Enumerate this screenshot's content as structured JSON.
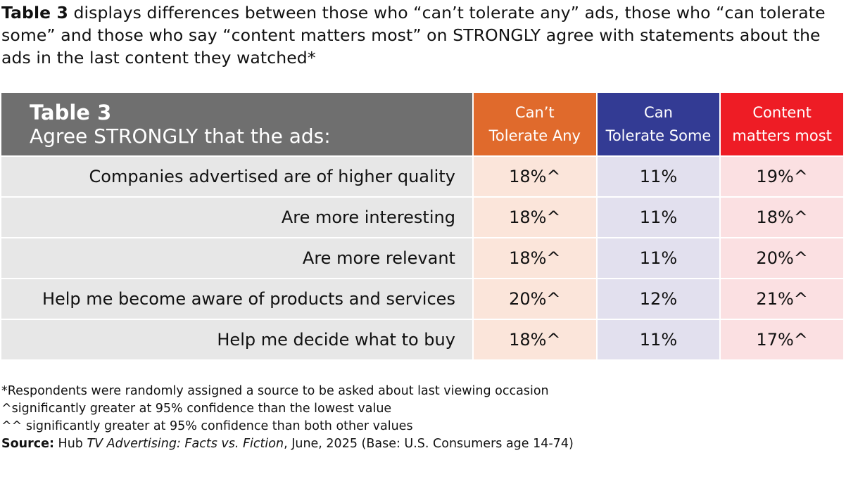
{
  "intro": {
    "bold_lead": "Table 3",
    "text": " displays differences between those who “can’t tolerate any” ads, those who “can tolerate some” and those who say “content matters most” on STRONGLY agree with state­ments about the ads in the last content they watched*"
  },
  "table": {
    "title": "Table 3",
    "subtitle": "Agree STRONGLY that the ads:",
    "columns": [
      {
        "line1": "Can’t",
        "line2": "Tolerate Any",
        "color": "#e06a2c"
      },
      {
        "line1": "Can",
        "line2": "Tolerate Some",
        "color": "#333b94"
      },
      {
        "line1": "Content",
        "line2": "matters most",
        "color": "#ee1c25"
      }
    ],
    "rows": [
      {
        "label": "Companies advertised are of higher quality",
        "values": [
          "18%^",
          "11%",
          "19%^"
        ]
      },
      {
        "label": "Are more interesting",
        "values": [
          "18%^",
          "11%",
          "18%^"
        ]
      },
      {
        "label": "Are more relevant",
        "values": [
          "18%^",
          "11%",
          "20%^"
        ]
      },
      {
        "label": "Help me become aware of products and services",
        "values": [
          "20%^",
          "12%",
          "21%^"
        ]
      },
      {
        "label": "Help me decide what to buy",
        "values": [
          "18%^",
          "11%",
          "17%^"
        ]
      }
    ]
  },
  "notes": {
    "line1": "*Respondents were randomly assigned a source to be asked about last viewing occasion",
    "line2": "^significantly greater at 95% confidence than the lowest value",
    "line3": "^^ significantly greater at 95% confidence than both other values",
    "source_label": "Source:",
    "source_pre": " Hub ",
    "source_title": "TV Advertising: Facts vs. Fiction",
    "source_post": ", June, 2025 (Base: U.S. Consumers age 14-74)"
  }
}
